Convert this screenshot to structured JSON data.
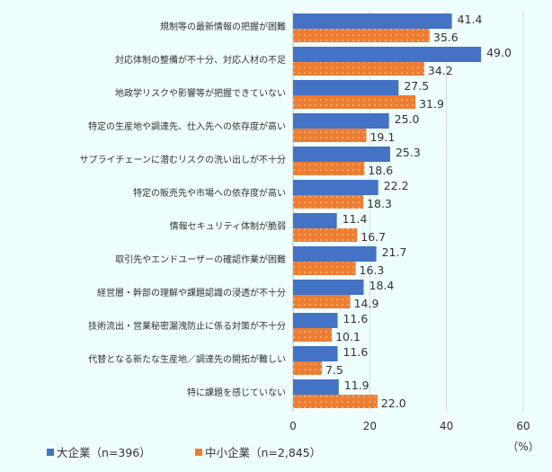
{
  "chart_data": {
    "type": "bar",
    "orientation": "horizontal",
    "categories": [
      "規制等の最新情報の把握が困難",
      "対応体制の整備が不十分、対応人材の不足",
      "地政学リスクや影響等が把握できていない",
      "特定の生産地や調達先、仕入先への依存度が高い",
      "サプライチェーンに潜むリスクの洗い出しが不十分",
      "特定の販売先や市場への依存度が高い",
      "情報セキュリティ体制が脆弱",
      "取引先やエンドユーザーの確認作業が困難",
      "経営層・幹部の理解や課題認識の浸透が不十分",
      "技術流出・営業秘密漏洩防止に係る対策が不十分",
      "代替となる新たな生産地／調達先の開拓が難しい",
      "特に課題を感じていない"
    ],
    "series": [
      {
        "name": "大企業（n=396）",
        "color": "#4472c4",
        "values": [
          41.4,
          49.0,
          27.5,
          25.0,
          25.3,
          22.2,
          11.4,
          21.7,
          18.4,
          11.6,
          11.6,
          11.9
        ]
      },
      {
        "name": "中小企業（n=2,845）",
        "color": "#ed7d31",
        "pattern": "dotted",
        "values": [
          35.6,
          34.2,
          31.9,
          19.1,
          18.6,
          18.3,
          16.7,
          16.3,
          14.9,
          10.1,
          7.5,
          22.0
        ]
      }
    ],
    "xlim": [
      0,
      60
    ],
    "xticks": [
      "0",
      "20",
      "40",
      "60"
    ],
    "xunit": "（%）",
    "grid": true,
    "legend": "bottom-left"
  }
}
